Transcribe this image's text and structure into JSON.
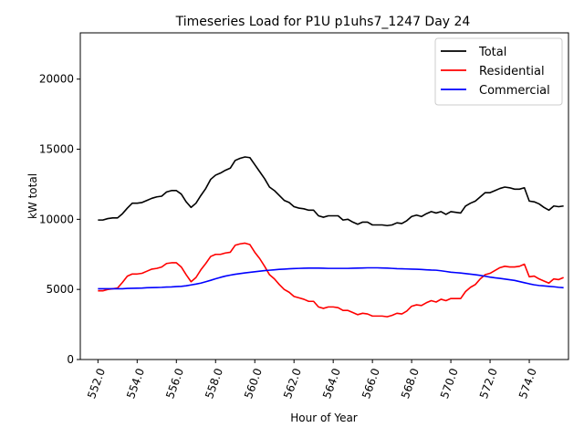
{
  "chart_data": {
    "type": "line",
    "title": "Timeseries Load for P1U p1uhs7_1247  Day 24",
    "xlabel": "Hour of Year",
    "ylabel": "kW total",
    "xlim": [
      551.1,
      576.0
    ],
    "ylim": [
      0,
      23300
    ],
    "xticks": [
      552.0,
      554.0,
      556.0,
      558.0,
      560.0,
      562.0,
      564.0,
      566.0,
      568.0,
      570.0,
      572.0,
      574.0
    ],
    "xtick_labels": [
      "552.0",
      "554.0",
      "556.0",
      "558.0",
      "560.0",
      "562.0",
      "564.0",
      "566.0",
      "568.0",
      "570.0",
      "572.0",
      "574.0"
    ],
    "yticks": [
      0,
      5000,
      10000,
      15000,
      20000
    ],
    "ytick_labels": [
      "0",
      "5000",
      "10000",
      "15000",
      "20000"
    ],
    "grid": false,
    "legend_position": "top-right",
    "x": [
      552.0,
      552.25,
      552.5,
      552.75,
      553.0,
      553.25,
      553.5,
      553.75,
      554.0,
      554.25,
      554.5,
      554.75,
      555.0,
      555.25,
      555.5,
      555.75,
      556.0,
      556.25,
      556.5,
      556.75,
      557.0,
      557.25,
      557.5,
      557.75,
      558.0,
      558.25,
      558.5,
      558.75,
      559.0,
      559.25,
      559.5,
      559.75,
      560.0,
      560.25,
      560.5,
      560.75,
      561.0,
      561.25,
      561.5,
      561.75,
      562.0,
      562.25,
      562.5,
      562.75,
      563.0,
      563.25,
      563.5,
      563.75,
      564.0,
      564.25,
      564.5,
      564.75,
      565.0,
      565.25,
      565.5,
      565.75,
      566.0,
      566.25,
      566.5,
      566.75,
      567.0,
      567.25,
      567.5,
      567.75,
      568.0,
      568.25,
      568.5,
      568.75,
      569.0,
      569.25,
      569.5,
      569.75,
      570.0,
      570.25,
      570.5,
      570.75,
      571.0,
      571.25,
      571.5,
      571.75,
      572.0,
      572.25,
      572.5,
      572.75,
      573.0,
      573.25,
      573.5,
      573.75,
      574.0,
      574.25,
      574.5,
      574.75,
      575.0,
      575.25,
      575.5,
      575.75
    ],
    "series": [
      {
        "name": "Total",
        "color": "#000000",
        "values": [
          9950,
          9950,
          10050,
          10100,
          10100,
          10400,
          10800,
          11150,
          11150,
          11200,
          11350,
          11500,
          11600,
          11650,
          11950,
          12050,
          12050,
          11800,
          11250,
          10850,
          11150,
          11700,
          12200,
          12850,
          13150,
          13300,
          13500,
          13650,
          14200,
          14350,
          14450,
          14400,
          13900,
          13400,
          12900,
          12300,
          12050,
          11700,
          11350,
          11200,
          10900,
          10800,
          10750,
          10650,
          10650,
          10250,
          10150,
          10250,
          10250,
          10250,
          9950,
          10000,
          9800,
          9650,
          9800,
          9800,
          9600,
          9600,
          9600,
          9550,
          9600,
          9750,
          9700,
          9900,
          10200,
          10300,
          10200,
          10400,
          10550,
          10450,
          10550,
          10350,
          10550,
          10500,
          10450,
          10950,
          11150,
          11300,
          11600,
          11900,
          11900,
          12050,
          12200,
          12300,
          12250,
          12150,
          12150,
          12250,
          11300,
          11250,
          11100,
          10850,
          10650,
          10950,
          10900,
          10950
        ]
      },
      {
        "name": "Residential",
        "color": "#ff0000",
        "values": [
          4900,
          4900,
          5000,
          5050,
          5100,
          5500,
          5950,
          6100,
          6100,
          6150,
          6300,
          6450,
          6500,
          6600,
          6850,
          6900,
          6900,
          6600,
          6050,
          5550,
          5850,
          6400,
          6850,
          7350,
          7500,
          7500,
          7600,
          7650,
          8150,
          8250,
          8300,
          8200,
          7650,
          7200,
          6650,
          6050,
          5750,
          5350,
          5000,
          4800,
          4500,
          4400,
          4300,
          4150,
          4150,
          3750,
          3650,
          3750,
          3750,
          3700,
          3500,
          3500,
          3350,
          3200,
          3300,
          3250,
          3100,
          3100,
          3100,
          3050,
          3150,
          3300,
          3250,
          3450,
          3800,
          3900,
          3850,
          4050,
          4200,
          4100,
          4300,
          4200,
          4350,
          4350,
          4350,
          4850,
          5150,
          5350,
          5750,
          6050,
          6150,
          6350,
          6550,
          6650,
          6600,
          6600,
          6650,
          6800,
          5900,
          5950,
          5750,
          5600,
          5450,
          5750,
          5700,
          5850
        ]
      },
      {
        "name": "Commercial",
        "color": "#0000ff",
        "values": [
          5050,
          5050,
          5050,
          5050,
          5050,
          5050,
          5070,
          5080,
          5090,
          5100,
          5120,
          5130,
          5140,
          5150,
          5170,
          5180,
          5200,
          5220,
          5260,
          5320,
          5380,
          5450,
          5550,
          5650,
          5760,
          5860,
          5950,
          6020,
          6080,
          6130,
          6180,
          6220,
          6260,
          6300,
          6340,
          6370,
          6400,
          6430,
          6450,
          6470,
          6490,
          6500,
          6510,
          6520,
          6520,
          6520,
          6510,
          6500,
          6500,
          6500,
          6500,
          6500,
          6510,
          6520,
          6530,
          6540,
          6540,
          6540,
          6530,
          6520,
          6500,
          6480,
          6470,
          6460,
          6450,
          6440,
          6420,
          6400,
          6380,
          6370,
          6330,
          6280,
          6230,
          6200,
          6170,
          6130,
          6090,
          6050,
          6000,
          5940,
          5880,
          5830,
          5790,
          5740,
          5690,
          5640,
          5560,
          5480,
          5400,
          5330,
          5280,
          5250,
          5220,
          5190,
          5150,
          5120
        ]
      }
    ]
  }
}
